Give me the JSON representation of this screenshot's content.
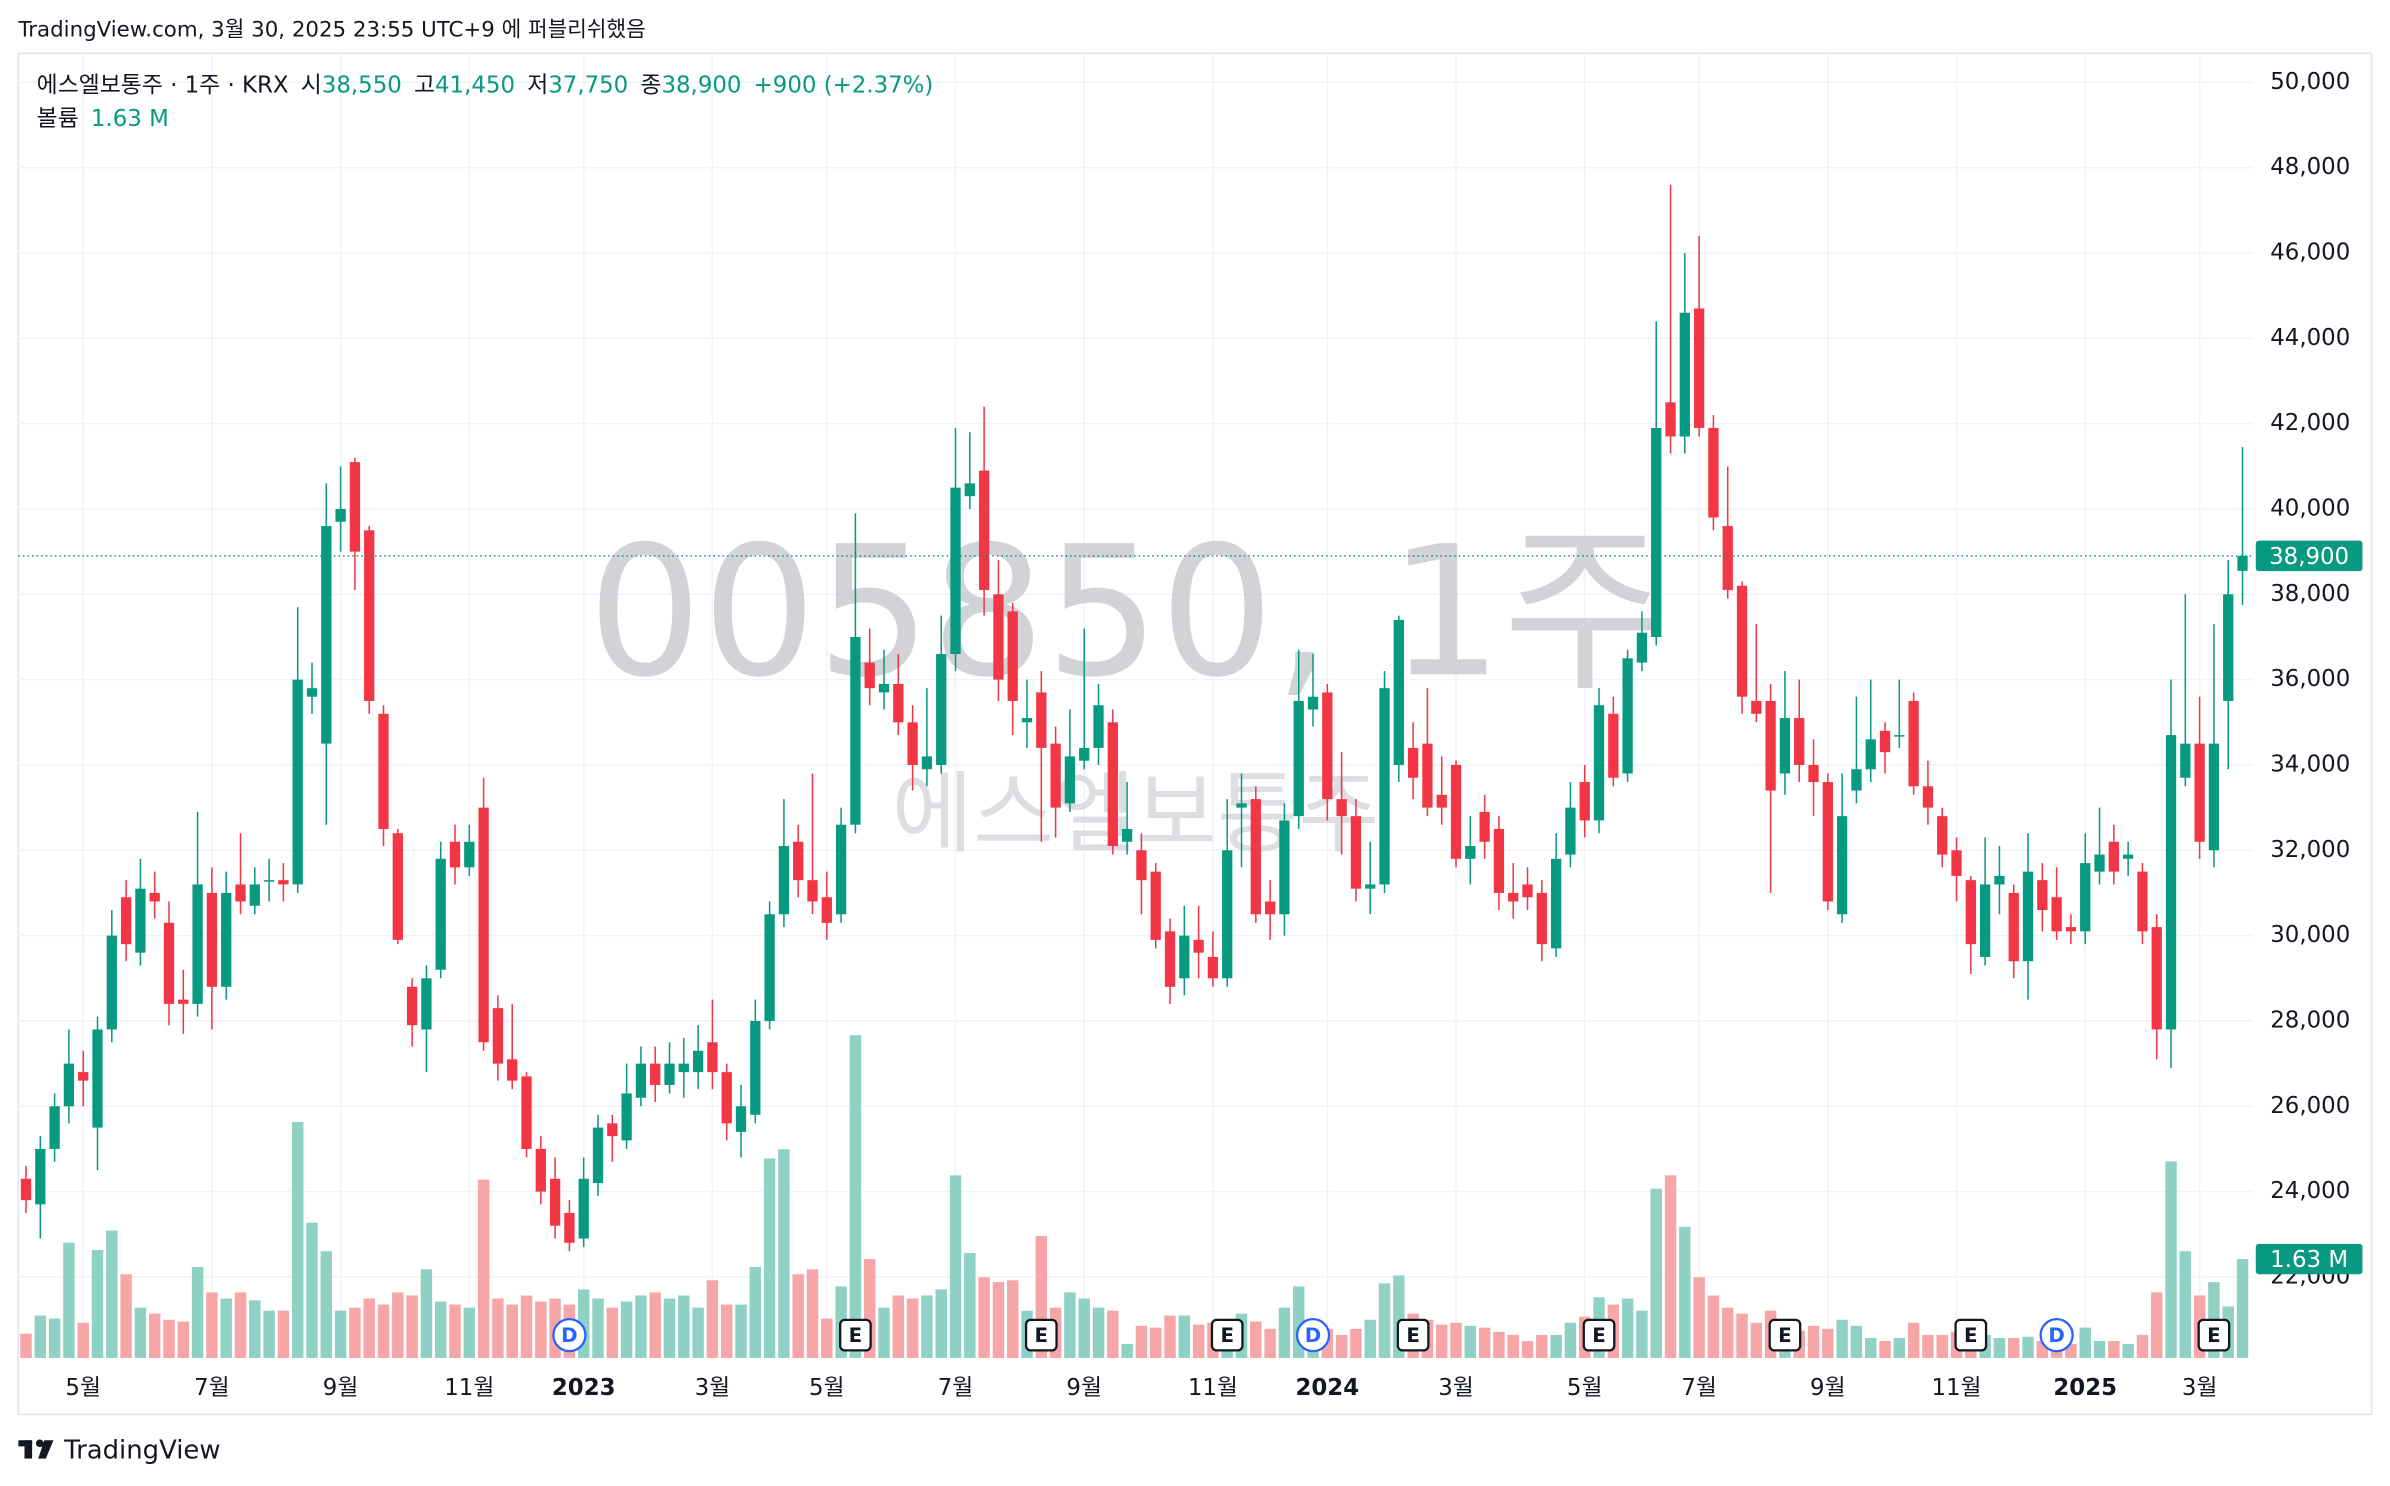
{
  "header": {
    "published": "TradingView.com, 3월 30, 2025 23:55 UTC+9 에 퍼블리쉬했음"
  },
  "footer": {
    "brand": "TradingView"
  },
  "chart_data": {
    "type": "candlestick",
    "watermark": "005850, 1주",
    "watermark_subtitle": "에스엘보통주",
    "legend": {
      "symbol": "에스엘보통주 · 1주 · KRX",
      "items": [
        {
          "key": "시",
          "value": "38,550"
        },
        {
          "key": "고",
          "value": "41,450"
        },
        {
          "key": "저",
          "value": "37,750"
        },
        {
          "key": "종",
          "value": "38,900"
        }
      ],
      "change": "+900 (+2.37%)",
      "volume_key": "볼륨",
      "volume_value": "1.63 M"
    },
    "last_price_label": "38,900",
    "last_volume_label": "1.63 M",
    "up_color": "#089981",
    "down_color": "#f23645",
    "volume_up_color": "#8fd1c5",
    "volume_down_color": "#f7a6a8",
    "ylim": [
      20100,
      50680
    ],
    "volume_ylim": [
      0,
      21.5
    ],
    "grid": true,
    "yticks": [
      {
        "value": 22000,
        "label": "22,000"
      },
      {
        "value": 24000,
        "label": "24,000"
      },
      {
        "value": 26000,
        "label": "26,000"
      },
      {
        "value": 28000,
        "label": "28,000"
      },
      {
        "value": 30000,
        "label": "30,000"
      },
      {
        "value": 32000,
        "label": "32,000"
      },
      {
        "value": 34000,
        "label": "34,000"
      },
      {
        "value": 36000,
        "label": "36,000"
      },
      {
        "value": 38000,
        "label": "38,000"
      },
      {
        "value": 40000,
        "label": "40,000"
      },
      {
        "value": 42000,
        "label": "42,000"
      },
      {
        "value": 44000,
        "label": "44,000"
      },
      {
        "value": 46000,
        "label": "46,000"
      },
      {
        "value": 48000,
        "label": "48,000"
      },
      {
        "value": 50000,
        "label": "50,000"
      }
    ],
    "categories": [
      null,
      null,
      null,
      null,
      "5월",
      null,
      null,
      null,
      null,
      null,
      null,
      null,
      null,
      "7월",
      null,
      null,
      null,
      null,
      null,
      null,
      null,
      null,
      "9월",
      null,
      null,
      null,
      null,
      null,
      null,
      null,
      null,
      "11월",
      null,
      null,
      null,
      null,
      null,
      null,
      null,
      "2023",
      null,
      null,
      null,
      null,
      null,
      null,
      null,
      null,
      "3월",
      null,
      null,
      null,
      null,
      null,
      null,
      null,
      "5월",
      null,
      null,
      null,
      null,
      null,
      null,
      null,
      null,
      "7월",
      null,
      null,
      null,
      null,
      null,
      null,
      null,
      null,
      "9월",
      null,
      null,
      null,
      null,
      null,
      null,
      null,
      null,
      "11월",
      null,
      null,
      null,
      null,
      null,
      null,
      null,
      "2024",
      null,
      null,
      null,
      null,
      null,
      null,
      null,
      null,
      "3월",
      null,
      null,
      null,
      null,
      null,
      null,
      null,
      null,
      "5월",
      null,
      null,
      null,
      null,
      null,
      null,
      null,
      "7월",
      null,
      null,
      null,
      null,
      null,
      null,
      null,
      null,
      "9월",
      null,
      null,
      null,
      null,
      null,
      null,
      null,
      null,
      "11월",
      null,
      null,
      null,
      null,
      null,
      null,
      null,
      null,
      "2025",
      null,
      null,
      null,
      null,
      null,
      null,
      null,
      "3월",
      null,
      null,
      null
    ],
    "events": [
      null,
      null,
      null,
      null,
      null,
      null,
      null,
      null,
      null,
      null,
      null,
      null,
      null,
      null,
      null,
      null,
      null,
      null,
      null,
      null,
      null,
      null,
      null,
      null,
      null,
      null,
      null,
      null,
      null,
      null,
      null,
      null,
      null,
      null,
      null,
      null,
      null,
      null,
      "D",
      null,
      null,
      null,
      null,
      null,
      null,
      null,
      null,
      null,
      null,
      null,
      null,
      null,
      null,
      null,
      null,
      null,
      null,
      null,
      "E",
      null,
      null,
      null,
      null,
      null,
      null,
      null,
      null,
      null,
      null,
      null,
      null,
      "E",
      null,
      null,
      null,
      null,
      null,
      null,
      null,
      null,
      null,
      null,
      null,
      null,
      "E",
      null,
      null,
      null,
      null,
      null,
      "D",
      null,
      null,
      null,
      null,
      null,
      null,
      "E",
      null,
      null,
      null,
      null,
      null,
      null,
      null,
      null,
      null,
      null,
      null,
      null,
      "E",
      null,
      null,
      null,
      null,
      null,
      null,
      null,
      null,
      null,
      null,
      null,
      null,
      "E",
      null,
      null,
      null,
      null,
      null,
      null,
      null,
      null,
      null,
      null,
      null,
      null,
      "E",
      null,
      null,
      null,
      null,
      null,
      "D",
      null,
      null,
      null,
      null,
      null,
      null,
      null,
      null,
      null,
      null,
      "E",
      null,
      null
    ],
    "open": [
      24300,
      23700,
      25000,
      26000,
      26800,
      25500,
      27800,
      30900,
      29600,
      31000,
      30300,
      28500,
      28400,
      31000,
      28800,
      31200,
      30700,
      31300,
      31300,
      31200,
      35600,
      34500,
      39700,
      41100,
      39500,
      35200,
      32400,
      28800,
      27800,
      29200,
      32200,
      31600,
      33000,
      28300,
      27100,
      26700,
      25000,
      24300,
      23500,
      22900,
      24200,
      25600,
      25200,
      26200,
      27000,
      26500,
      26800,
      26800,
      27500,
      26800,
      25400,
      25800,
      28000,
      30500,
      32200,
      31300,
      30900,
      30500,
      32600,
      36400,
      35700,
      35900,
      35000,
      33900,
      34000,
      36600,
      40300,
      40900,
      38000,
      37600,
      35000,
      35700,
      34500,
      33100,
      34100,
      34400,
      35000,
      32200,
      32000,
      31500,
      30100,
      29000,
      29900,
      29500,
      29000,
      33000,
      33200,
      30800,
      30500,
      32800,
      35300,
      35700,
      33200,
      32800,
      31100,
      31200,
      34000,
      34400,
      34500,
      33300,
      34000,
      31800,
      32900,
      32500,
      31000,
      31200,
      31000,
      29700,
      31900,
      33600,
      32700,
      35200,
      33800,
      36400,
      37000,
      42500,
      41700,
      44700,
      41900,
      39600,
      38200,
      35500,
      35500,
      33800,
      35100,
      34000,
      33600,
      30500,
      33400,
      33900,
      34800,
      34700,
      35500,
      33500,
      32800,
      32000,
      31300,
      29500,
      31200,
      31000,
      29400,
      31300,
      30900,
      30200,
      30100,
      31500,
      32200,
      31800,
      31500,
      30200,
      27800,
      33700,
      34500,
      32000,
      35500,
      38550
    ],
    "high": [
      24600,
      25300,
      26300,
      27800,
      27300,
      28100,
      30600,
      31300,
      31800,
      31500,
      30800,
      29200,
      32900,
      31600,
      31500,
      32400,
      31600,
      31800,
      31700,
      37700,
      36400,
      40600,
      41000,
      41200,
      39600,
      35400,
      32500,
      29000,
      29300,
      32200,
      32600,
      32600,
      33700,
      28600,
      28400,
      26800,
      25300,
      24800,
      23800,
      24800,
      25800,
      25800,
      27000,
      27400,
      27400,
      27500,
      27600,
      27900,
      28500,
      27000,
      26500,
      28500,
      30800,
      33200,
      32600,
      33800,
      31500,
      33000,
      39900,
      37200,
      36700,
      36600,
      35400,
      35800,
      37500,
      41900,
      41800,
      42400,
      38800,
      37800,
      36000,
      36200,
      34900,
      35300,
      37200,
      35900,
      35300,
      33600,
      32400,
      31700,
      30400,
      30700,
      30700,
      30100,
      33200,
      33800,
      33500,
      31300,
      33100,
      36700,
      36600,
      35900,
      34300,
      33200,
      32200,
      36200,
      37500,
      35000,
      35800,
      34200,
      34100,
      32800,
      33300,
      32800,
      31700,
      31600,
      31300,
      32400,
      33600,
      34000,
      35800,
      35600,
      36700,
      37600,
      44400,
      47600,
      46000,
      46400,
      42200,
      41000,
      38300,
      37300,
      35900,
      36200,
      36000,
      34600,
      33800,
      33800,
      35600,
      36000,
      35000,
      36000,
      35700,
      34100,
      33000,
      32300,
      31400,
      32300,
      32100,
      31200,
      32400,
      31700,
      31600,
      30500,
      32400,
      33000,
      32600,
      32200,
      31700,
      30500,
      36000,
      38000,
      35600,
      37300,
      38800,
      41450
    ],
    "low": [
      23500,
      22900,
      24700,
      25600,
      26000,
      24500,
      27500,
      29400,
      29300,
      30400,
      27900,
      27700,
      28100,
      27800,
      28500,
      30500,
      30500,
      30800,
      30800,
      31000,
      35200,
      32600,
      39000,
      38100,
      35200,
      32100,
      29800,
      27400,
      26800,
      29000,
      31200,
      31400,
      27300,
      26600,
      26400,
      24800,
      23700,
      22900,
      22600,
      22700,
      23900,
      24700,
      25000,
      26000,
      26100,
      26300,
      26200,
      26400,
      26400,
      25200,
      24800,
      25600,
      27800,
      30200,
      30900,
      30500,
      29900,
      30300,
      32400,
      35400,
      35300,
      34700,
      33400,
      33500,
      33800,
      36200,
      40000,
      37500,
      35500,
      34700,
      34400,
      32200,
      32300,
      32900,
      33900,
      34000,
      31900,
      31900,
      30500,
      29700,
      28400,
      28600,
      29000,
      28800,
      28800,
      31600,
      30300,
      29900,
      30000,
      32500,
      34900,
      32700,
      31900,
      30800,
      30500,
      31000,
      33600,
      33200,
      32800,
      32600,
      31600,
      31200,
      31800,
      30600,
      30400,
      30600,
      29400,
      29500,
      31600,
      32300,
      32400,
      33500,
      33600,
      36200,
      36800,
      41300,
      41300,
      41700,
      39500,
      37900,
      35200,
      35000,
      31000,
      33300,
      33600,
      32800,
      30600,
      30300,
      33100,
      33600,
      33800,
      34400,
      33300,
      32600,
      31600,
      30800,
      29100,
      29300,
      30500,
      29000,
      28500,
      30100,
      29900,
      29800,
      29800,
      31200,
      31200,
      31400,
      29800,
      27100,
      26900,
      33500,
      31800,
      31600,
      33900,
      37750
    ],
    "close": [
      23800,
      25000,
      26000,
      27000,
      26600,
      27800,
      30000,
      29800,
      31100,
      30800,
      28400,
      28400,
      31200,
      28800,
      31000,
      30800,
      31200,
      31300,
      31200,
      36000,
      35800,
      39600,
      40000,
      39000,
      35500,
      32500,
      29900,
      27900,
      29000,
      31800,
      31600,
      32200,
      27500,
      27000,
      26600,
      25000,
      24000,
      23200,
      22800,
      24300,
      25500,
      25300,
      26300,
      27000,
      26500,
      27000,
      27000,
      27300,
      26800,
      25600,
      26000,
      28000,
      30500,
      32100,
      31300,
      30800,
      30300,
      32600,
      37000,
      35800,
      35900,
      35000,
      34000,
      34200,
      36600,
      40500,
      40600,
      38100,
      36000,
      35500,
      35100,
      34400,
      33000,
      34200,
      34400,
      35400,
      32100,
      32500,
      31300,
      29900,
      28800,
      30000,
      29600,
      29000,
      32000,
      33100,
      30500,
      30500,
      32700,
      35500,
      35600,
      33200,
      32800,
      31100,
      31200,
      35800,
      37400,
      33700,
      33000,
      33000,
      31800,
      32100,
      32200,
      31000,
      30800,
      30900,
      29800,
      31800,
      33000,
      32700,
      35400,
      33700,
      36500,
      37100,
      41900,
      41700,
      44600,
      41900,
      39800,
      38100,
      35600,
      35200,
      33400,
      35100,
      34000,
      33600,
      30800,
      32800,
      33900,
      34600,
      34300,
      34700,
      33500,
      33000,
      31900,
      31400,
      29800,
      31200,
      31400,
      29400,
      31500,
      30600,
      30100,
      30100,
      31700,
      31900,
      31500,
      31900,
      30100,
      27800,
      34700,
      34500,
      32200,
      34500,
      38000,
      38900
    ],
    "volume": [
      0.4,
      0.7,
      0.65,
      1.9,
      0.58,
      1.78,
      2.1,
      1.38,
      0.83,
      0.73,
      0.63,
      0.6,
      1.5,
      1.08,
      0.98,
      1.08,
      0.95,
      0.78,
      0.78,
      3.89,
      2.23,
      1.76,
      0.78,
      0.83,
      0.98,
      0.88,
      1.08,
      1.03,
      1.46,
      0.93,
      0.88,
      0.83,
      2.94,
      0.98,
      0.88,
      1.03,
      0.93,
      0.98,
      0.88,
      1.13,
      0.98,
      0.83,
      0.93,
      1.03,
      1.08,
      0.98,
      1.03,
      0.83,
      1.28,
      0.88,
      0.88,
      1.5,
      3.29,
      3.44,
      1.38,
      1.46,
      0.65,
      1.18,
      5.32,
      1.63,
      0.83,
      1.03,
      0.98,
      1.03,
      1.13,
      3.01,
      1.73,
      1.33,
      1.25,
      1.28,
      0.78,
      2.01,
      0.83,
      1.08,
      0.98,
      0.83,
      0.78,
      0.23,
      0.53,
      0.5,
      0.7,
      0.7,
      0.55,
      0.58,
      0.48,
      0.73,
      0.6,
      0.48,
      0.83,
      1.18,
      0.53,
      0.48,
      0.38,
      0.48,
      0.63,
      1.23,
      1.36,
      0.73,
      0.63,
      0.55,
      0.58,
      0.53,
      0.5,
      0.43,
      0.38,
      0.28,
      0.38,
      0.38,
      0.58,
      0.68,
      1.0,
      0.88,
      0.98,
      0.78,
      2.79,
      3.01,
      2.16,
      1.33,
      1.03,
      0.83,
      0.73,
      0.58,
      0.78,
      0.53,
      0.45,
      0.53,
      0.48,
      0.63,
      0.53,
      0.33,
      0.28,
      0.33,
      0.58,
      0.38,
      0.38,
      0.43,
      0.43,
      0.38,
      0.33,
      0.33,
      0.35,
      0.28,
      0.28,
      0.23,
      0.5,
      0.28,
      0.28,
      0.23,
      0.38,
      1.08,
      3.24,
      1.76,
      1.03,
      1.25,
      0.85,
      1.63
    ]
  }
}
